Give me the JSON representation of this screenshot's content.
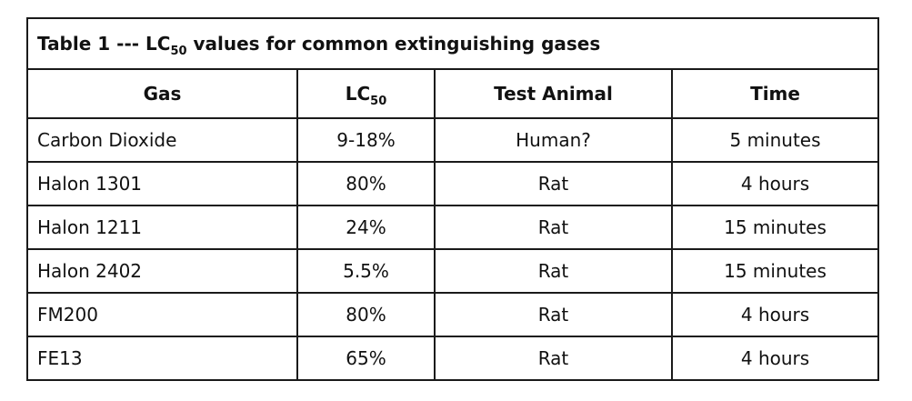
{
  "table": {
    "title_prefix": "Table 1 --- LC",
    "title_subscript": "50",
    "title_suffix": " values for common extinguishing gases",
    "headers": {
      "gas": "Gas",
      "lc_main": "LC",
      "lc_sub": "50",
      "animal": "Test Animal",
      "time": "Time"
    },
    "rows": [
      {
        "gas": "Carbon Dioxide",
        "lc50": "9-18%",
        "animal": "Human?",
        "time": "5 minutes"
      },
      {
        "gas": "Halon 1301",
        "lc50": "80%",
        "animal": "Rat",
        "time": "4 hours"
      },
      {
        "gas": "Halon 1211",
        "lc50": "24%",
        "animal": "Rat",
        "time": "15 minutes"
      },
      {
        "gas": "Halon 2402",
        "lc50": "5.5%",
        "animal": "Rat",
        "time": "15 minutes"
      },
      {
        "gas": "FM200",
        "lc50": "80%",
        "animal": "Rat",
        "time": "4 hours"
      },
      {
        "gas": "FE13",
        "lc50": "65%",
        "animal": "Rat",
        "time": "4 hours"
      }
    ]
  }
}
